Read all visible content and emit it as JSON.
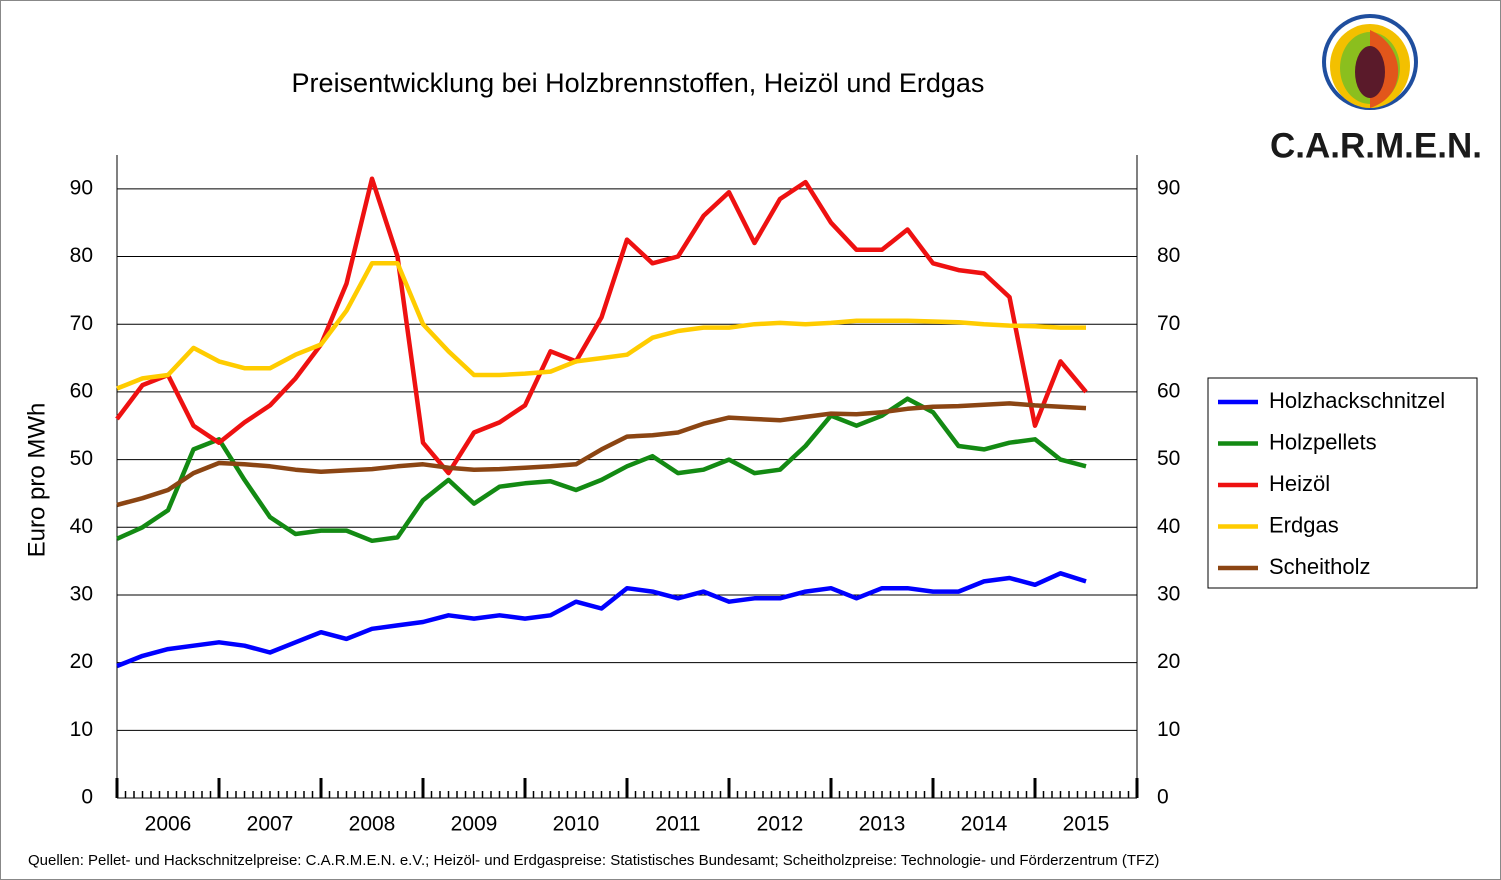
{
  "chart_data": {
    "type": "line",
    "title": "Preisentwicklung bei Holzbrennstoffen, Heizöl und Erdgas",
    "y_label": "Euro pro MWh",
    "source": "Quellen:  Pellet- und Hackschnitzelpreise:  C.A.R.M.E.N. e.V.; Heizöl- und Erdgaspreise: Statistisches Bundesamt;  Scheitholzpreise:  Technologie- und Förderzentrum  (TFZ)",
    "logo": "C.A.R.M.E.N.",
    "x": [
      2006,
      2006.25,
      2006.5,
      2006.75,
      2007,
      2007.25,
      2007.5,
      2007.75,
      2008,
      2008.25,
      2008.5,
      2008.75,
      2009,
      2009.25,
      2009.5,
      2009.75,
      2010,
      2010.25,
      2010.5,
      2010.75,
      2011,
      2011.25,
      2011.5,
      2011.75,
      2012,
      2012.25,
      2012.5,
      2012.75,
      2013,
      2013.25,
      2013.5,
      2013.75,
      2014,
      2014.25,
      2014.5,
      2014.75,
      2015,
      2015.25,
      2015.5
    ],
    "xlim": [
      2006,
      2016
    ],
    "xticks": [
      {
        "value": 2006.5,
        "label": "2006"
      },
      {
        "value": 2007.5,
        "label": "2007"
      },
      {
        "value": 2008.5,
        "label": "2008"
      },
      {
        "value": 2009.5,
        "label": "2009"
      },
      {
        "value": 2010.5,
        "label": "2010"
      },
      {
        "value": 2011.5,
        "label": "2011"
      },
      {
        "value": 2012.5,
        "label": "2012"
      },
      {
        "value": 2013.5,
        "label": "2013"
      },
      {
        "value": 2014.5,
        "label": "2014"
      },
      {
        "value": 2015.5,
        "label": "2015"
      }
    ],
    "ylim": [
      0,
      95
    ],
    "yticks": [
      0,
      10,
      20,
      30,
      40,
      50,
      60,
      70,
      80,
      90
    ],
    "y2lim": [
      0,
      95
    ],
    "y2ticks": [
      0,
      10,
      20,
      30,
      40,
      50,
      60,
      70,
      80,
      90
    ],
    "grid": true,
    "legend": "right",
    "series": [
      {
        "name": "Holzhackschnitzel",
        "color": "#0000ff",
        "values": [
          19.5,
          21,
          22,
          22.5,
          23,
          22.5,
          21.5,
          23,
          24.5,
          23.5,
          25,
          25.5,
          26,
          27,
          26.5,
          27,
          26.5,
          27,
          29,
          28,
          31,
          30.5,
          29.5,
          30.5,
          29,
          29.5,
          29.5,
          30.5,
          31,
          29.5,
          31,
          31,
          30.5,
          30.5,
          32,
          32.5,
          31.5,
          33.2,
          32
        ]
      },
      {
        "name": "Holzpellets",
        "color": "#138a13",
        "values": [
          38.3,
          40,
          42.5,
          51.5,
          53,
          47,
          41.5,
          39,
          39.5,
          39.5,
          38,
          38.5,
          44,
          47,
          43.5,
          46,
          46.5,
          46.8,
          45.5,
          47,
          49,
          50.5,
          48,
          48.5,
          50,
          48,
          48.5,
          52,
          56.5,
          55,
          56.5,
          59,
          57,
          52,
          51.5,
          52.5,
          53,
          50,
          49
        ]
      },
      {
        "name": "Heizöl",
        "color": "#ee1111",
        "values": [
          56,
          61,
          62.5,
          55,
          52.5,
          55.5,
          58,
          62,
          67,
          76,
          91.5,
          80,
          52.5,
          48,
          54,
          55.5,
          58,
          66,
          64.5,
          71,
          82.5,
          79,
          80,
          86,
          89.5,
          82,
          88.5,
          91,
          85,
          81,
          81,
          84,
          79,
          78,
          77.5,
          74,
          55,
          64.5,
          60
        ]
      },
      {
        "name": "Erdgas",
        "color": "#ffcc00",
        "values": [
          60.5,
          62,
          62.5,
          66.5,
          64.5,
          63.5,
          63.5,
          65.5,
          67,
          72,
          79,
          79,
          70,
          66,
          62.5,
          62.5,
          62.7,
          63,
          64.5,
          65,
          65.5,
          68,
          69,
          69.5,
          69.5,
          70,
          70.2,
          70,
          70.2,
          70.5,
          70.5,
          70.5,
          70.4,
          70.3,
          70,
          69.8,
          69.7,
          69.5,
          69.5
        ]
      },
      {
        "name": "Scheitholz",
        "color": "#8b4513",
        "values": [
          43.3,
          44.3,
          45.5,
          48,
          49.5,
          49.3,
          49,
          48.5,
          48.2,
          48.4,
          48.6,
          49,
          49.3,
          48.8,
          48.5,
          48.6,
          48.8,
          49,
          49.3,
          51.5,
          53.4,
          53.6,
          54,
          55.3,
          56.2,
          56,
          55.8,
          56.3,
          56.8,
          56.7,
          57,
          57.5,
          57.8,
          57.9,
          58.1,
          58.3,
          58,
          57.8,
          57.6
        ]
      }
    ]
  }
}
